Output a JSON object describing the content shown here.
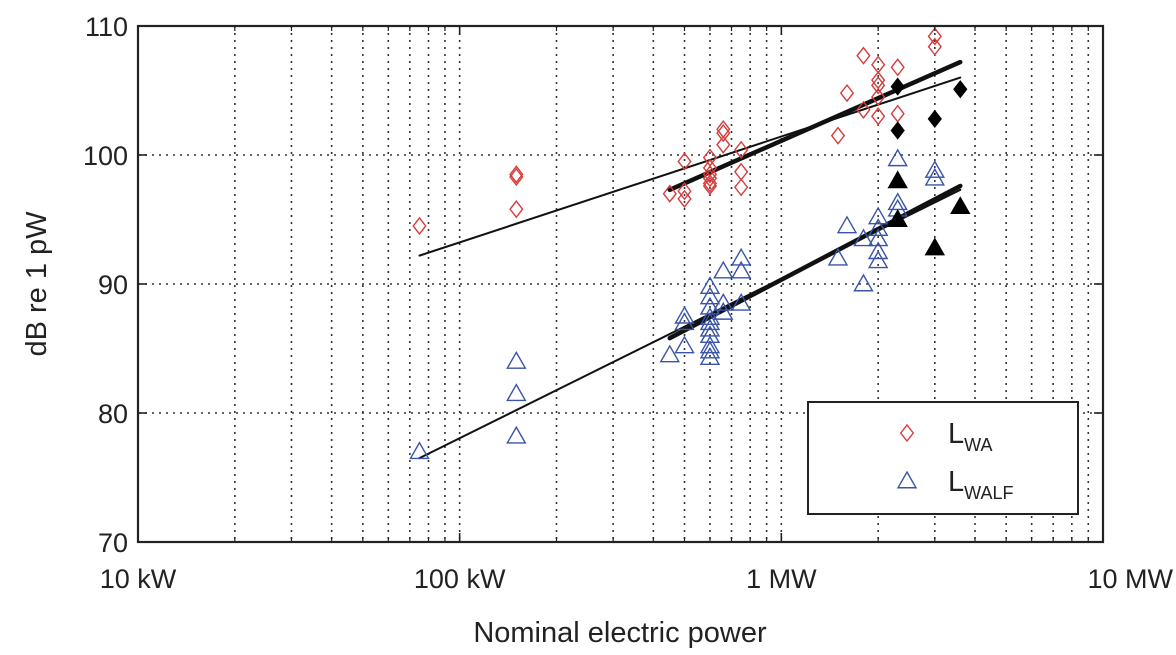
{
  "chart_data": {
    "type": "scatter",
    "title": "",
    "xlabel": "Nominal electric power",
    "ylabel": "dB re 1 pW",
    "x_scale": "log",
    "x_unit": "kW",
    "xlim": [
      10,
      10000
    ],
    "ylim": [
      70,
      110
    ],
    "x_ticks": [
      {
        "value": 10,
        "label": "10 kW"
      },
      {
        "value": 100,
        "label": "100 kW"
      },
      {
        "value": 1000,
        "label": "1 MW"
      },
      {
        "value": 10000,
        "label": "10 MW"
      }
    ],
    "y_ticks": [
      {
        "value": 70,
        "label": "70"
      },
      {
        "value": 80,
        "label": "80"
      },
      {
        "value": 90,
        "label": "90"
      },
      {
        "value": 100,
        "label": "100"
      },
      {
        "value": 110,
        "label": "110"
      }
    ],
    "grid": "dotted, major and minor on x, major on y",
    "legend_position": "bottom-right",
    "series": [
      {
        "name": "L_WA",
        "legend_main": "L",
        "legend_sub": "WA",
        "marker": "diamond-open",
        "color": "#d63c3c",
        "points": [
          [
            75,
            94.5
          ],
          [
            150,
            98.5
          ],
          [
            150,
            98.3
          ],
          [
            150,
            95.8
          ],
          [
            450,
            97.0
          ],
          [
            500,
            99.5
          ],
          [
            500,
            97.2
          ],
          [
            500,
            96.6
          ],
          [
            600,
            99.8
          ],
          [
            600,
            99.0
          ],
          [
            600,
            98.5
          ],
          [
            600,
            98.2
          ],
          [
            600,
            97.8
          ],
          [
            600,
            97.6
          ],
          [
            660,
            102.0
          ],
          [
            660,
            101.7
          ],
          [
            660,
            100.8
          ],
          [
            750,
            100.4
          ],
          [
            750,
            98.7
          ],
          [
            750,
            97.5
          ],
          [
            1500,
            101.5
          ],
          [
            1600,
            104.8
          ],
          [
            1800,
            107.7
          ],
          [
            1800,
            103.5
          ],
          [
            2000,
            107.0
          ],
          [
            2000,
            105.8
          ],
          [
            2000,
            105.4
          ],
          [
            2000,
            104.5
          ],
          [
            2000,
            103.0
          ],
          [
            2300,
            106.8
          ],
          [
            2300,
            103.2
          ],
          [
            3000,
            109.2
          ],
          [
            3000,
            108.4
          ]
        ]
      },
      {
        "name": "L_WALF",
        "legend_main": "L",
        "legend_sub": "WALF",
        "marker": "triangle-open",
        "color": "#3a54a8",
        "points": [
          [
            75,
            77.0
          ],
          [
            150,
            84.0
          ],
          [
            150,
            81.5
          ],
          [
            150,
            78.2
          ],
          [
            450,
            84.5
          ],
          [
            500,
            87.5
          ],
          [
            500,
            87.0
          ],
          [
            500,
            85.2
          ],
          [
            600,
            89.8
          ],
          [
            600,
            89.0
          ],
          [
            600,
            88.2
          ],
          [
            600,
            87.4
          ],
          [
            600,
            87.0
          ],
          [
            600,
            86.5
          ],
          [
            600,
            86.0
          ],
          [
            600,
            85.2
          ],
          [
            600,
            84.8
          ],
          [
            600,
            84.3
          ],
          [
            660,
            91.0
          ],
          [
            660,
            88.5
          ],
          [
            660,
            87.8
          ],
          [
            750,
            92.0
          ],
          [
            750,
            91.0
          ],
          [
            750,
            88.5
          ],
          [
            1500,
            92.0
          ],
          [
            1600,
            94.5
          ],
          [
            1800,
            90.0
          ],
          [
            1800,
            93.5
          ],
          [
            2000,
            95.2
          ],
          [
            2000,
            94.3
          ],
          [
            2000,
            93.5
          ],
          [
            2000,
            92.5
          ],
          [
            2000,
            91.8
          ],
          [
            2300,
            99.7
          ],
          [
            2300,
            96.3
          ],
          [
            2300,
            95.8
          ],
          [
            3000,
            98.8
          ],
          [
            3000,
            98.2
          ]
        ]
      },
      {
        "marker": "diamond-filled",
        "color": "#000000",
        "points": [
          [
            2300,
            105.3
          ],
          [
            2300,
            101.9
          ],
          [
            3000,
            102.8
          ],
          [
            3600,
            105.1
          ]
        ]
      },
      {
        "marker": "triangle-filled",
        "color": "#000000",
        "points": [
          [
            2300,
            98.0
          ],
          [
            2300,
            95.0
          ],
          [
            3000,
            92.8
          ],
          [
            3600,
            96.0
          ]
        ]
      }
    ],
    "trend_lines": [
      {
        "from": [
          75,
          92.2
        ],
        "to": [
          3600,
          106.0
        ],
        "width": "thin"
      },
      {
        "from": [
          450,
          97.3
        ],
        "to": [
          3600,
          107.2
        ],
        "width": "thick"
      },
      {
        "from": [
          75,
          76.5
        ],
        "to": [
          3600,
          97.3
        ],
        "width": "thin"
      },
      {
        "from": [
          450,
          85.8
        ],
        "to": [
          3600,
          97.6
        ],
        "width": "thick"
      }
    ]
  }
}
